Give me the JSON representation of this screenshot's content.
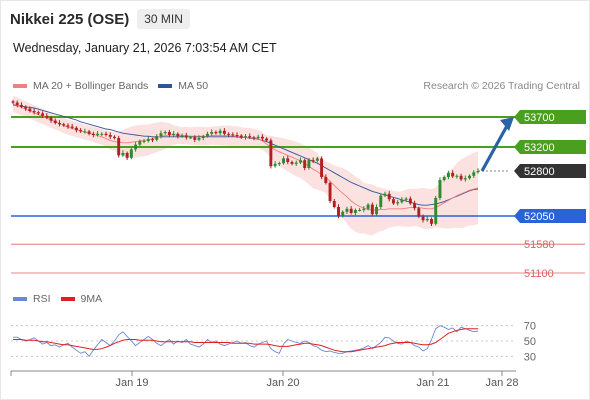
{
  "header": {
    "title": "Nikkei 225 (OSE)",
    "interval": "30 MIN",
    "datetime": "Wednesday, January 21, 2026 7:03:54 AM CET"
  },
  "legend": {
    "ma20_label": "MA 20 + Bollinger Bands",
    "ma50_label": "MA 50",
    "credit": "Research © 2026 Trading Central"
  },
  "rsi_legend": {
    "rsi_label": "RSI",
    "ma9_label": "9MA"
  },
  "colors": {
    "ma20": "#f08080",
    "ma50": "#2f5597",
    "resistance": "#4aa01e",
    "pivot": "#2a62d8",
    "support": "#e06060",
    "last_price": "#333333",
    "rsi": "#6a88d8",
    "rsi_ma": "#e02020",
    "band_fill": "#fcdcdc",
    "candle_up": "#2e8a2e",
    "candle_down": "#b02020",
    "arrow": "#2a62a8"
  },
  "chart_data": {
    "type": "candlestick",
    "title": "Nikkei 225 (OSE)",
    "timeframe": "30 MIN",
    "x_tick_labels": [
      "Jan 19",
      "Jan 20",
      "Jan 21",
      "Jan 28"
    ],
    "y_range": [
      50950,
      54050
    ],
    "levels": [
      {
        "name": "resistance",
        "value": 53700,
        "label": "53700",
        "style": "green-badge"
      },
      {
        "name": "resistance",
        "value": 53200,
        "label": "53200",
        "style": "green-badge"
      },
      {
        "name": "last_price",
        "value": 52800,
        "label": "52800",
        "style": "dark-badge"
      },
      {
        "name": "pivot",
        "value": 52050,
        "label": "52050",
        "style": "blue-badge"
      },
      {
        "name": "support",
        "value": 51580,
        "label": "51580",
        "style": "red-text"
      },
      {
        "name": "support",
        "value": 51100,
        "label": "51100",
        "style": "red-text"
      }
    ],
    "close_series": [
      53940,
      53900,
      53870,
      53840,
      53800,
      53780,
      53760,
      53720,
      53690,
      53640,
      53600,
      53580,
      53560,
      53540,
      53520,
      53480,
      53460,
      53460,
      53420,
      53400,
      53420,
      53420,
      53400,
      53370,
      53350,
      53060,
      53100,
      53020,
      53160,
      53240,
      53300,
      53300,
      53330,
      53320,
      53380,
      53430,
      53450,
      53400,
      53420,
      53380,
      53390,
      53360,
      53360,
      53320,
      53350,
      53380,
      53420,
      53450,
      53430,
      53470,
      53420,
      53410,
      53400,
      53390,
      53360,
      53380,
      53360,
      53350,
      53370,
      53340,
      53310,
      52880,
      52920,
      52930,
      53010,
      52950,
      52920,
      52940,
      52980,
      52850,
      52980,
      52970,
      53010,
      52700,
      52600,
      52300,
      52200,
      52050,
      52120,
      52170,
      52100,
      52150,
      52150,
      52170,
      52240,
      52080,
      52200,
      52390,
      52420,
      52330,
      52260,
      52280,
      52320,
      52340,
      52260,
      52180,
      52040,
      51980,
      52000,
      51920,
      52350,
      52650,
      52700,
      52770,
      52710,
      52720,
      52660,
      52680,
      52720,
      52780,
      52800
    ],
    "ma20_series": [
      53920,
      53890,
      53860,
      53830,
      53800,
      53770,
      53740,
      53710,
      53680,
      53650,
      53620,
      53590,
      53560,
      53530,
      53510,
      53490,
      53470,
      53450,
      53430,
      53410,
      53390,
      53370,
      53340,
      53310,
      53290,
      53280,
      53270,
      53270,
      53280,
      53290,
      53300,
      53310,
      53320,
      53340,
      53360,
      53380,
      53390,
      53400,
      53400,
      53400,
      53390,
      53390,
      53380,
      53380,
      53380,
      53380,
      53380,
      53390,
      53390,
      53390,
      53390,
      53390,
      53380,
      53380,
      53370,
      53360,
      53360,
      53350,
      53340,
      53300,
      53250,
      53200,
      53150,
      53120,
      53090,
      53060,
      53030,
      53000,
      52970,
      52930,
      52880,
      52830,
      52790,
      52740,
      52690,
      52630,
      52560,
      52490,
      52430,
      52370,
      52300,
      52250,
      52210,
      52180,
      52160,
      52150,
      52150,
      52160,
      52160,
      52170,
      52170,
      52170,
      52170,
      52180,
      52190,
      52190,
      52190,
      52180,
      52170,
      52170,
      52190,
      52230,
      52270,
      52310,
      52350,
      52390,
      52420,
      52450,
      52480,
      52500,
      52520
    ],
    "ma50_series": [
      53900,
      53890,
      53880,
      53870,
      53860,
      53850,
      53830,
      53810,
      53790,
      53770,
      53750,
      53730,
      53710,
      53690,
      53670,
      53650,
      53620,
      53600,
      53580,
      53560,
      53540,
      53520,
      53500,
      53490,
      53470,
      53450,
      53430,
      53420,
      53410,
      53400,
      53390,
      53380,
      53380,
      53370,
      53370,
      53370,
      53370,
      53370,
      53370,
      53370,
      53370,
      53370,
      53370,
      53370,
      53370,
      53370,
      53370,
      53370,
      53370,
      53370,
      53370,
      53370,
      53370,
      53370,
      53360,
      53360,
      53350,
      53340,
      53330,
      53310,
      53290,
      53260,
      53230,
      53200,
      53170,
      53140,
      53110,
      53080,
      53050,
      53020,
      52990,
      52960,
      52930,
      52890,
      52850,
      52810,
      52770,
      52730,
      52690,
      52650,
      52610,
      52580,
      52550,
      52520,
      52490,
      52460,
      52440,
      52420,
      52400,
      52380,
      52360,
      52340,
      52320,
      52300,
      52280,
      52260,
      52240,
      52230,
      52230,
      52240,
      52250,
      52270,
      52290,
      52320,
      52350,
      52380,
      52410,
      52440,
      52470,
      52490,
      52500
    ],
    "bollinger_band": {
      "upper_offset_typical": 250,
      "note": "band around MA20"
    },
    "rsi": {
      "axis_ticks": [
        70,
        50,
        30
      ],
      "rsi_series": [
        55,
        55,
        52,
        50,
        52,
        54,
        50,
        46,
        48,
        44,
        45,
        42,
        45,
        47,
        42,
        38,
        34,
        36,
        30,
        38,
        45,
        52,
        48,
        44,
        50,
        58,
        62,
        56,
        50,
        44,
        48,
        52,
        56,
        52,
        47,
        44,
        48,
        52,
        46,
        50,
        48,
        52,
        46,
        44,
        42,
        46,
        52,
        48,
        50,
        46,
        44,
        46,
        48,
        50,
        47,
        48,
        44,
        42,
        46,
        48,
        50,
        40,
        36,
        34,
        46,
        52,
        50,
        48,
        47,
        50,
        48,
        44,
        42,
        38,
        36,
        37,
        35,
        34,
        34,
        36,
        37,
        38,
        39,
        41,
        44,
        40,
        44,
        48,
        55,
        54,
        50,
        47,
        46,
        50,
        48,
        44,
        42,
        37,
        40,
        52,
        66,
        70,
        68,
        65,
        67,
        62,
        68,
        66,
        64,
        62,
        63
      ],
      "rsi_ma_series": [
        52,
        52,
        52,
        51,
        51,
        51,
        50,
        49,
        49,
        48,
        47,
        46,
        45,
        45,
        44,
        43,
        42,
        41,
        40,
        39,
        39,
        40,
        42,
        44,
        47,
        49,
        51,
        52,
        52,
        52,
        51,
        51,
        51,
        51,
        50,
        49,
        49,
        49,
        49,
        49,
        49,
        49,
        49,
        48,
        48,
        48,
        48,
        48,
        48,
        48,
        48,
        48,
        47,
        47,
        47,
        47,
        47,
        46,
        46,
        46,
        46,
        45,
        44,
        43,
        43,
        43,
        44,
        45,
        46,
        47,
        47,
        46,
        45,
        44,
        42,
        40,
        38,
        37,
        36,
        36,
        36,
        37,
        38,
        39,
        40,
        41,
        42,
        43,
        44,
        46,
        47,
        48,
        48,
        48,
        48,
        47,
        46,
        45,
        45,
        46,
        48,
        52,
        56,
        60,
        62,
        64,
        65,
        66,
        66,
        66,
        66
      ]
    }
  }
}
